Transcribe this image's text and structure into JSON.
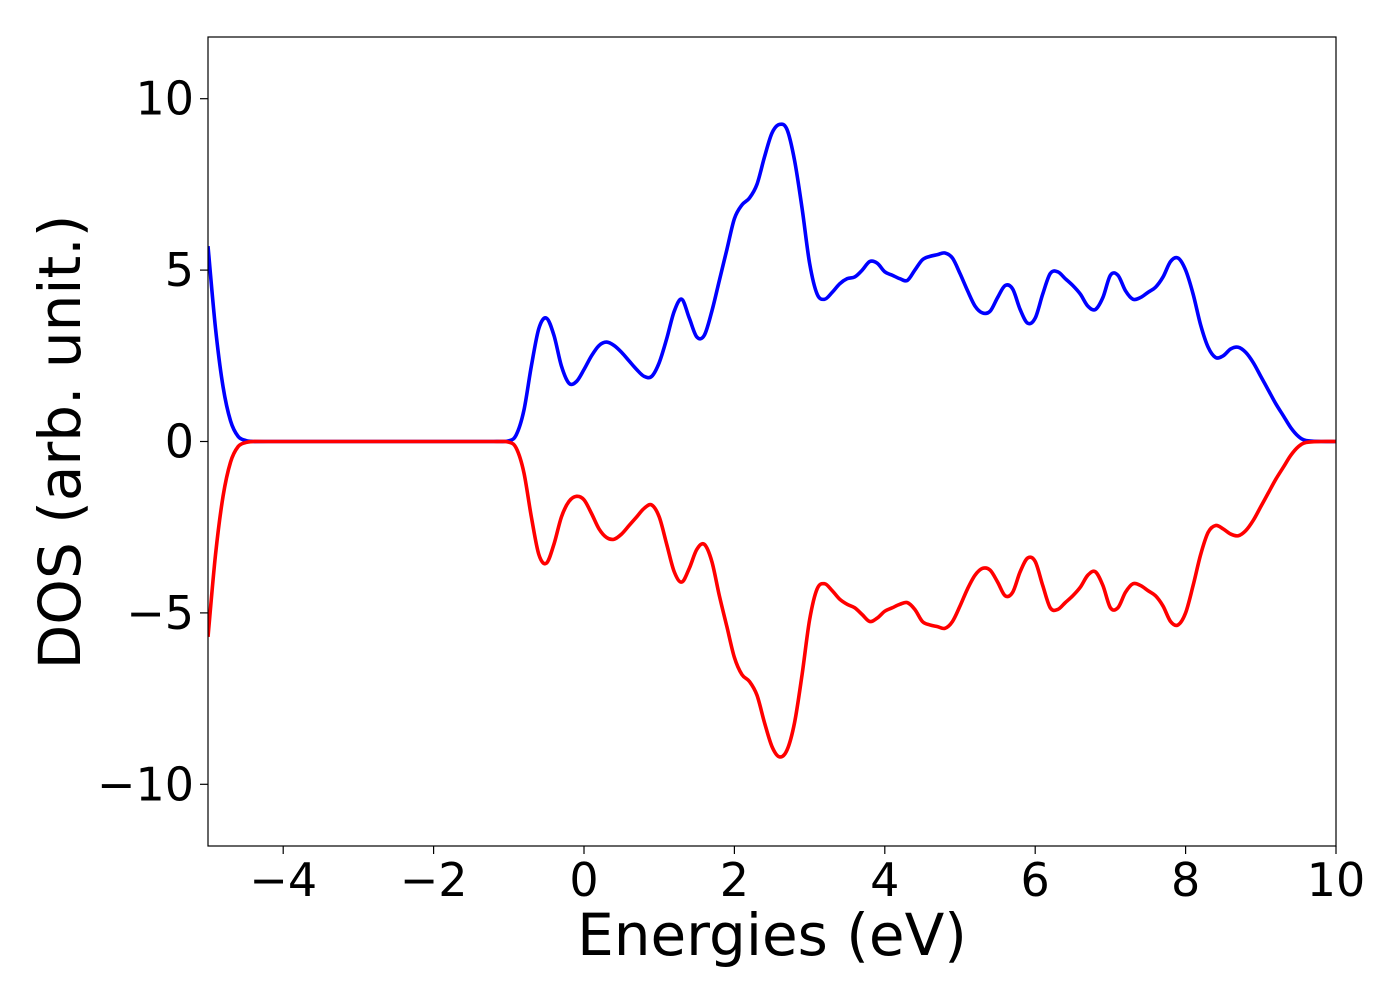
{
  "chart_data": {
    "type": "line",
    "title": "",
    "xlabel": "Energies (eV)",
    "ylabel": "DOS (arb. unit.)",
    "xlim": [
      -5,
      10
    ],
    "ylim": [
      -11.8,
      11.8
    ],
    "grid": false,
    "legend": "none",
    "xticks": [
      -4,
      -2,
      0,
      2,
      4,
      6,
      8,
      10
    ],
    "xtick_labels": [
      "−4",
      "−2",
      "0",
      "2",
      "4",
      "6",
      "8",
      "10"
    ],
    "yticks": [
      -10,
      -5,
      0,
      5,
      10
    ],
    "ytick_labels": [
      "−10",
      "−5",
      "0",
      "5",
      "10"
    ],
    "series": [
      {
        "color": "#0000ff",
        "x": [
          -5.0,
          -4.9,
          -4.8,
          -4.7,
          -4.6,
          -4.5,
          -4.4,
          -4.2,
          -3.0,
          -2.0,
          -1.2,
          -1.0,
          -0.9,
          -0.8,
          -0.7,
          -0.6,
          -0.5,
          -0.4,
          -0.3,
          -0.2,
          -0.1,
          0.0,
          0.1,
          0.2,
          0.3,
          0.4,
          0.5,
          0.6,
          0.7,
          0.8,
          0.9,
          1.0,
          1.1,
          1.2,
          1.3,
          1.4,
          1.5,
          1.6,
          1.7,
          1.8,
          1.9,
          2.0,
          2.1,
          2.2,
          2.3,
          2.4,
          2.5,
          2.6,
          2.7,
          2.8,
          2.9,
          3.0,
          3.1,
          3.2,
          3.3,
          3.4,
          3.5,
          3.6,
          3.7,
          3.8,
          3.9,
          4.0,
          4.1,
          4.2,
          4.3,
          4.4,
          4.5,
          4.6,
          4.7,
          4.8,
          4.9,
          5.0,
          5.1,
          5.2,
          5.3,
          5.4,
          5.5,
          5.6,
          5.7,
          5.8,
          5.9,
          6.0,
          6.1,
          6.2,
          6.3,
          6.4,
          6.5,
          6.6,
          6.7,
          6.8,
          6.9,
          7.0,
          7.1,
          7.2,
          7.3,
          7.4,
          7.5,
          7.6,
          7.7,
          7.8,
          7.9,
          8.0,
          8.1,
          8.2,
          8.3,
          8.4,
          8.5,
          8.6,
          8.7,
          8.8,
          8.9,
          9.0,
          9.1,
          9.2,
          9.3,
          9.4,
          9.5,
          9.6,
          9.8,
          10.0
        ],
        "y": [
          5.7,
          3.3,
          1.6,
          0.6,
          0.15,
          0.03,
          0.0,
          0.0,
          0.0,
          0.0,
          0.0,
          0.02,
          0.2,
          0.9,
          2.2,
          3.3,
          3.6,
          3.1,
          2.2,
          1.7,
          1.75,
          2.1,
          2.5,
          2.8,
          2.9,
          2.8,
          2.6,
          2.35,
          2.1,
          1.9,
          1.9,
          2.3,
          3.0,
          3.8,
          4.15,
          3.6,
          3.05,
          3.1,
          3.8,
          4.7,
          5.6,
          6.5,
          6.9,
          7.1,
          7.5,
          8.3,
          9.0,
          9.25,
          9.1,
          8.2,
          6.8,
          5.2,
          4.3,
          4.15,
          4.35,
          4.6,
          4.75,
          4.8,
          5.0,
          5.25,
          5.2,
          4.95,
          4.85,
          4.75,
          4.7,
          5.0,
          5.3,
          5.4,
          5.45,
          5.5,
          5.35,
          4.9,
          4.4,
          3.95,
          3.75,
          3.8,
          4.2,
          4.55,
          4.45,
          3.85,
          3.45,
          3.6,
          4.3,
          4.9,
          4.95,
          4.75,
          4.55,
          4.3,
          3.95,
          3.85,
          4.2,
          4.85,
          4.85,
          4.4,
          4.15,
          4.2,
          4.35,
          4.5,
          4.8,
          5.25,
          5.35,
          5.0,
          4.3,
          3.4,
          2.75,
          2.45,
          2.5,
          2.7,
          2.75,
          2.6,
          2.3,
          1.9,
          1.5,
          1.1,
          0.75,
          0.4,
          0.15,
          0.03,
          0.0,
          0.0
        ]
      },
      {
        "color": "#ff0000",
        "x": [
          -5.0,
          -4.9,
          -4.8,
          -4.7,
          -4.6,
          -4.5,
          -4.4,
          -4.2,
          -3.0,
          -2.0,
          -1.2,
          -1.0,
          -0.9,
          -0.8,
          -0.7,
          -0.6,
          -0.5,
          -0.4,
          -0.3,
          -0.2,
          -0.1,
          0.0,
          0.1,
          0.2,
          0.3,
          0.4,
          0.5,
          0.6,
          0.7,
          0.8,
          0.9,
          1.0,
          1.1,
          1.2,
          1.3,
          1.4,
          1.5,
          1.6,
          1.7,
          1.8,
          1.9,
          2.0,
          2.1,
          2.2,
          2.3,
          2.4,
          2.5,
          2.6,
          2.7,
          2.8,
          2.9,
          3.0,
          3.1,
          3.2,
          3.3,
          3.4,
          3.5,
          3.6,
          3.7,
          3.8,
          3.9,
          4.0,
          4.1,
          4.2,
          4.3,
          4.4,
          4.5,
          4.6,
          4.7,
          4.8,
          4.9,
          5.0,
          5.1,
          5.2,
          5.3,
          5.4,
          5.5,
          5.6,
          5.7,
          5.8,
          5.9,
          6.0,
          6.1,
          6.2,
          6.3,
          6.4,
          6.5,
          6.6,
          6.7,
          6.8,
          6.9,
          7.0,
          7.1,
          7.2,
          7.3,
          7.4,
          7.5,
          7.6,
          7.7,
          7.8,
          7.9,
          8.0,
          8.1,
          8.2,
          8.3,
          8.4,
          8.5,
          8.6,
          8.7,
          8.8,
          8.9,
          9.0,
          9.1,
          9.2,
          9.3,
          9.4,
          9.5,
          9.6,
          9.8,
          10.0
        ],
        "y": [
          -5.7,
          -3.3,
          -1.6,
          -0.6,
          -0.15,
          -0.03,
          0.0,
          0.0,
          0.0,
          0.0,
          0.0,
          -0.02,
          -0.2,
          -0.9,
          -2.2,
          -3.3,
          -3.55,
          -3.0,
          -2.2,
          -1.75,
          -1.6,
          -1.7,
          -2.1,
          -2.55,
          -2.8,
          -2.85,
          -2.7,
          -2.45,
          -2.2,
          -1.95,
          -1.85,
          -2.2,
          -3.0,
          -3.8,
          -4.1,
          -3.7,
          -3.15,
          -3.0,
          -3.5,
          -4.5,
          -5.4,
          -6.3,
          -6.8,
          -7.0,
          -7.4,
          -8.2,
          -8.9,
          -9.2,
          -9.0,
          -8.2,
          -6.8,
          -5.2,
          -4.3,
          -4.15,
          -4.35,
          -4.6,
          -4.75,
          -4.85,
          -5.05,
          -5.25,
          -5.15,
          -4.95,
          -4.85,
          -4.75,
          -4.7,
          -4.9,
          -5.25,
          -5.35,
          -5.4,
          -5.45,
          -5.25,
          -4.8,
          -4.3,
          -3.9,
          -3.7,
          -3.75,
          -4.1,
          -4.5,
          -4.4,
          -3.8,
          -3.4,
          -3.5,
          -4.2,
          -4.85,
          -4.9,
          -4.7,
          -4.5,
          -4.25,
          -3.9,
          -3.8,
          -4.2,
          -4.85,
          -4.85,
          -4.4,
          -4.15,
          -4.2,
          -4.35,
          -4.5,
          -4.8,
          -5.25,
          -5.35,
          -5.0,
          -4.2,
          -3.3,
          -2.65,
          -2.45,
          -2.55,
          -2.7,
          -2.75,
          -2.6,
          -2.3,
          -1.9,
          -1.5,
          -1.1,
          -0.75,
          -0.4,
          -0.15,
          -0.03,
          0.0,
          0.0
        ]
      }
    ]
  }
}
